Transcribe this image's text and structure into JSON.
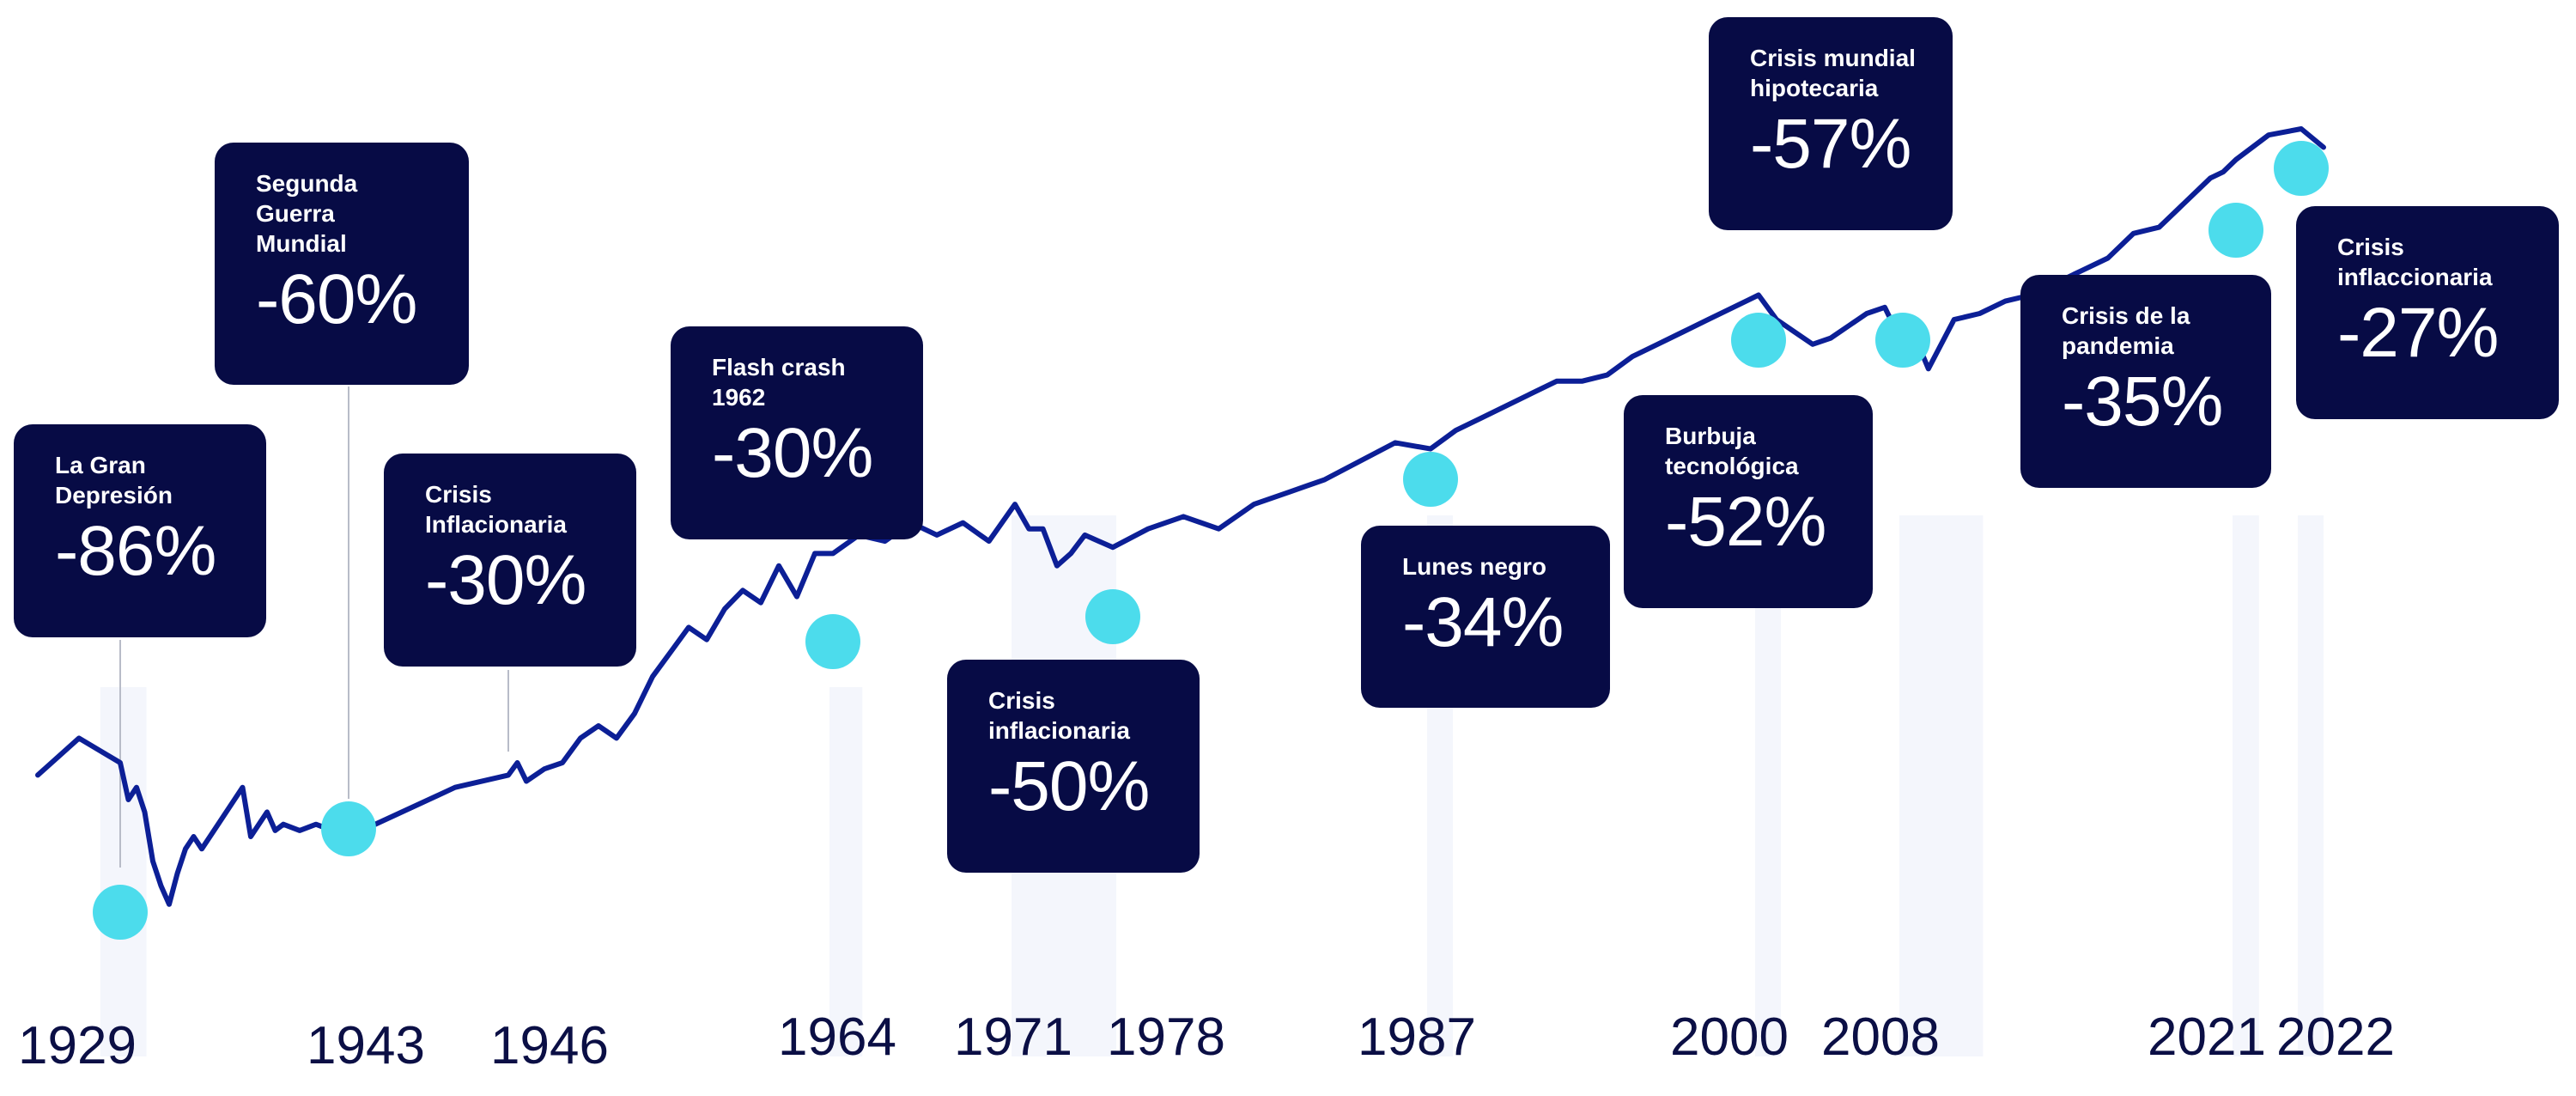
{
  "chart_data": {
    "type": "line",
    "title": "",
    "xlabel": "",
    "ylabel": "",
    "x_tick_labels": [
      "1929",
      "1943",
      "1946",
      "1964",
      "1971",
      "1978",
      "1987",
      "2000",
      "2008",
      "2021",
      "2022"
    ],
    "series": [
      {
        "x": [
          1927,
          1928,
          1929,
          1929.5,
          1930,
          1930.5,
          1931,
          1931.5,
          1932,
          1932.5,
          1933,
          1933.5,
          1934,
          1935,
          1936,
          1936.5,
          1937,
          1938,
          1938.5,
          1939,
          1940,
          1941,
          1942,
          1943,
          1944,
          1945,
          1946,
          1946.5,
          1947,
          1948,
          1949,
          1950,
          1951,
          1952,
          1953,
          1954,
          1955,
          1956,
          1957,
          1958,
          1959,
          1960,
          1961,
          1962,
          1963,
          1964,
          1965,
          1966,
          1967,
          1968,
          1969,
          1970,
          1971,
          1972,
          1973,
          1974,
          1975,
          1976,
          1977,
          1978,
          1979,
          1980,
          1981,
          1982,
          1983,
          1984,
          1985,
          1986,
          1987,
          1988,
          1989,
          1990,
          1991,
          1992,
          1993,
          1994,
          1995,
          1996,
          1997,
          1998,
          1999,
          2000,
          2001,
          2002,
          2003,
          2004,
          2005,
          2006,
          2007,
          2008,
          2008.5,
          2009,
          2010,
          2011,
          2012,
          2013,
          2014,
          2015,
          2016,
          2017,
          2018,
          2019,
          2020,
          2020.5,
          2021,
          2021.5,
          2022,
          2022.5
        ],
        "values": [
          22,
          28,
          24,
          18,
          20,
          16,
          8,
          4,
          1,
          6,
          10,
          12,
          10,
          14,
          18,
          20,
          12,
          16,
          13,
          14,
          13,
          14,
          13,
          12,
          16,
          20,
          22,
          24,
          21,
          23,
          24,
          28,
          30,
          28,
          32,
          38,
          42,
          46,
          44,
          49,
          52,
          50,
          56,
          51,
          58,
          58,
          61,
          60,
          63,
          61,
          63,
          60,
          66,
          62,
          62,
          56,
          58,
          61,
          60,
          59,
          62,
          64,
          62,
          66,
          68,
          70,
          73,
          76,
          75,
          78,
          80,
          82,
          84,
          86,
          86,
          87,
          90,
          92,
          94,
          96,
          98,
          100,
          96,
          94,
          92,
          93,
          95,
          97,
          98,
          92,
          93,
          88,
          96,
          97,
          99,
          100,
          102,
          104,
          106,
          110,
          111,
          115,
          119,
          120,
          122,
          126,
          127,
          124
        ]
      }
    ],
    "events": [
      {
        "year": "1929",
        "name": "La Gran Depresión",
        "drop": "-86%"
      },
      {
        "year": "1943",
        "name": "Segunda Guerra Mundial",
        "drop": "-60%"
      },
      {
        "year": "1946",
        "name": "Crisis Inflacionaria",
        "drop": "-30%"
      },
      {
        "year": "1964",
        "name": "Flash crash 1962",
        "drop": "-30%"
      },
      {
        "year": "1971",
        "name": "Crisis inflacionaria",
        "drop": "-50%"
      },
      {
        "year": "1987",
        "name": "Lunes negro",
        "drop": "-34%"
      },
      {
        "year": "2000",
        "name": "Burbuja tecnológica",
        "drop": "-52%"
      },
      {
        "year": "2008",
        "name": "Crisis mundial hipotecaria",
        "drop": "-57%"
      },
      {
        "year": "2021",
        "name": "Crisis de la pandemia",
        "drop": "-35%"
      },
      {
        "year": "2022",
        "name": "Crisis inflaccionaria",
        "drop": "-27%"
      }
    ],
    "colors": {
      "line": "#0c1f96",
      "marker": "#4cdcec",
      "card": "#070b45",
      "band": "#f4f6fc",
      "year_text": "#0b0f45"
    }
  },
  "cards": [
    {
      "name": "La Gran\nDepresión",
      "pct": "-86%"
    },
    {
      "name": "Segunda\nGuerra\nMundial",
      "pct": "-60%"
    },
    {
      "name": "Crisis\nInflacionaria",
      "pct": "-30%"
    },
    {
      "name": "Flash crash\n1962",
      "pct": "-30%"
    },
    {
      "name": "Crisis\ninflacionaria",
      "pct": "-50%"
    },
    {
      "name": "Lunes negro",
      "pct": "-34%"
    },
    {
      "name": "Burbuja\ntecnológica",
      "pct": "-52%"
    },
    {
      "name": "Crisis mundial\nhipotecaria",
      "pct": "-57%"
    },
    {
      "name": "Crisis de la\npandemia",
      "pct": "-35%"
    },
    {
      "name": "Crisis\ninflaccionaria",
      "pct": "-27%"
    }
  ]
}
